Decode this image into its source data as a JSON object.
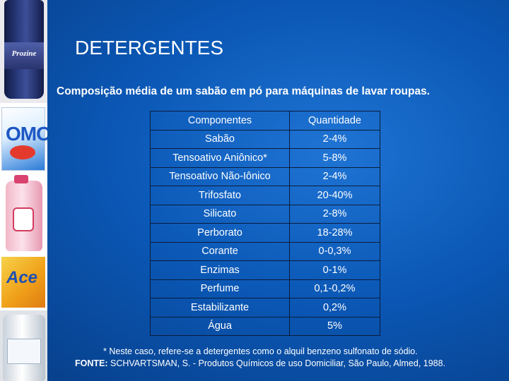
{
  "slide": {
    "title": "DETERGENTES",
    "subtitle": "Composição média de um sabão em pó para máquinas de lavar roupas."
  },
  "products": {
    "p1_brand": "Prozine",
    "p2_brand": "OMO",
    "p4_brand": "Ace"
  },
  "table": {
    "headers": [
      "Componentes",
      "Quantidade"
    ],
    "rows": [
      [
        "Sabão",
        "2-4%"
      ],
      [
        "Tensoativo Aniônico*",
        "5-8%"
      ],
      [
        "Tensoativo Não-Iônico",
        "2-4%"
      ],
      [
        "Trifosfato",
        "20-40%"
      ],
      [
        "Silicato",
        "2-8%"
      ],
      [
        "Perborato",
        "18-28%"
      ],
      [
        "Corante",
        "0-0,3%"
      ],
      [
        "Enzimas",
        "0-1%"
      ],
      [
        "Perfume",
        "0,1-0,2%"
      ],
      [
        "Estabilizante",
        "0,2%"
      ],
      [
        "Água",
        "5%"
      ]
    ]
  },
  "footnote": "*   Neste caso, refere-se a detergentes como o alquil benzeno sulfonato de sódio.",
  "source": {
    "label": "FONTE:",
    "text": " SCHVARTSMAN, S. - Produtos Químicos de uso Domiciliar, São Paulo, Almed, 1988."
  },
  "colors": {
    "background": "#0b58b6",
    "text": "#ffffff",
    "grid": "#0a1c3c"
  }
}
